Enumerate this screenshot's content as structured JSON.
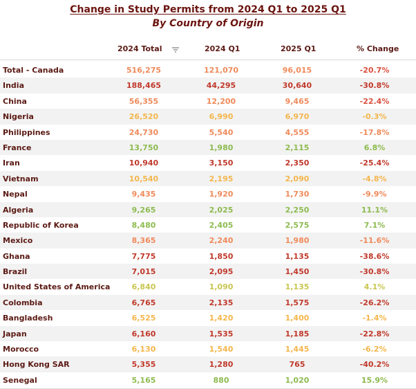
{
  "title": "Change in Study Permits from 2024 Q1 to 2025 Q1",
  "subtitle": "By Country of Origin",
  "columns": [
    "",
    "2024 Total",
    "2024 Q1",
    "2025 Q1",
    "% Change"
  ],
  "colors": {
    "dark_red": "#c0392b",
    "red": "#d9503f",
    "orange": "#ef8a5a",
    "light_orange": "#f4b64c",
    "yellow_green": "#c9c64f",
    "green": "#8dbb4f"
  },
  "rows": [
    {
      "country": "Total - Canada",
      "total": "516,275",
      "q1_2024": "121,070",
      "q1_2025": "96,015",
      "change": "-20.7%",
      "c_total": "#ef8a5a",
      "c_q24": "#ef8a5a",
      "c_q25": "#ef8a5a",
      "c_chg": "#d9503f"
    },
    {
      "country": "India",
      "total": "188,465",
      "q1_2024": "44,295",
      "q1_2025": "30,640",
      "change": "-30.8%",
      "c_total": "#c0392b",
      "c_q24": "#c0392b",
      "c_q25": "#c0392b",
      "c_chg": "#c0392b"
    },
    {
      "country": "China",
      "total": "56,355",
      "q1_2024": "12,200",
      "q1_2025": "9,465",
      "change": "-22.4%",
      "c_total": "#ef8a5a",
      "c_q24": "#ef8a5a",
      "c_q25": "#ef8a5a",
      "c_chg": "#d9503f"
    },
    {
      "country": "Nigeria",
      "total": "26,520",
      "q1_2024": "6,990",
      "q1_2025": "6,970",
      "change": "-0.3%",
      "c_total": "#f4b64c",
      "c_q24": "#f4b64c",
      "c_q25": "#f4b64c",
      "c_chg": "#f4b64c"
    },
    {
      "country": "Philippines",
      "total": "24,730",
      "q1_2024": "5,540",
      "q1_2025": "4,555",
      "change": "-17.8%",
      "c_total": "#ef8a5a",
      "c_q24": "#ef8a5a",
      "c_q25": "#ef8a5a",
      "c_chg": "#ef8a5a"
    },
    {
      "country": "France",
      "total": "13,750",
      "q1_2024": "1,980",
      "q1_2025": "2,115",
      "change": "6.8%",
      "c_total": "#8dbb4f",
      "c_q24": "#8dbb4f",
      "c_q25": "#8dbb4f",
      "c_chg": "#8dbb4f"
    },
    {
      "country": "Iran",
      "total": "10,940",
      "q1_2024": "3,150",
      "q1_2025": "2,350",
      "change": "-25.4%",
      "c_total": "#c0392b",
      "c_q24": "#c0392b",
      "c_q25": "#c0392b",
      "c_chg": "#c0392b"
    },
    {
      "country": "Vietnam",
      "total": "10,540",
      "q1_2024": "2,195",
      "q1_2025": "2,090",
      "change": "-4.8%",
      "c_total": "#f4b64c",
      "c_q24": "#f4b64c",
      "c_q25": "#f4b64c",
      "c_chg": "#f4b64c"
    },
    {
      "country": "Nepal",
      "total": "9,435",
      "q1_2024": "1,920",
      "q1_2025": "1,730",
      "change": "-9.9%",
      "c_total": "#ef8a5a",
      "c_q24": "#ef8a5a",
      "c_q25": "#ef8a5a",
      "c_chg": "#ef8a5a"
    },
    {
      "country": "Algeria",
      "total": "9,265",
      "q1_2024": "2,025",
      "q1_2025": "2,250",
      "change": "11.1%",
      "c_total": "#8dbb4f",
      "c_q24": "#8dbb4f",
      "c_q25": "#8dbb4f",
      "c_chg": "#8dbb4f"
    },
    {
      "country": "Republic of Korea",
      "total": "8,480",
      "q1_2024": "2,405",
      "q1_2025": "2,575",
      "change": "7.1%",
      "c_total": "#8dbb4f",
      "c_q24": "#8dbb4f",
      "c_q25": "#8dbb4f",
      "c_chg": "#8dbb4f"
    },
    {
      "country": "Mexico",
      "total": "8,365",
      "q1_2024": "2,240",
      "q1_2025": "1,980",
      "change": "-11.6%",
      "c_total": "#ef8a5a",
      "c_q24": "#ef8a5a",
      "c_q25": "#ef8a5a",
      "c_chg": "#ef8a5a"
    },
    {
      "country": "Ghana",
      "total": "7,775",
      "q1_2024": "1,850",
      "q1_2025": "1,135",
      "change": "-38.6%",
      "c_total": "#c0392b",
      "c_q24": "#c0392b",
      "c_q25": "#c0392b",
      "c_chg": "#c0392b"
    },
    {
      "country": "Brazil",
      "total": "7,015",
      "q1_2024": "2,095",
      "q1_2025": "1,450",
      "change": "-30.8%",
      "c_total": "#c0392b",
      "c_q24": "#c0392b",
      "c_q25": "#c0392b",
      "c_chg": "#c0392b"
    },
    {
      "country": "United States of America",
      "total": "6,840",
      "q1_2024": "1,090",
      "q1_2025": "1,135",
      "change": "4.1%",
      "c_total": "#c9c64f",
      "c_q24": "#c9c64f",
      "c_q25": "#c9c64f",
      "c_chg": "#c9c64f"
    },
    {
      "country": "Colombia",
      "total": "6,765",
      "q1_2024": "2,135",
      "q1_2025": "1,575",
      "change": "-26.2%",
      "c_total": "#c0392b",
      "c_q24": "#c0392b",
      "c_q25": "#c0392b",
      "c_chg": "#c0392b"
    },
    {
      "country": "Bangladesh",
      "total": "6,525",
      "q1_2024": "1,420",
      "q1_2025": "1,400",
      "change": "-1.4%",
      "c_total": "#f4b64c",
      "c_q24": "#f4b64c",
      "c_q25": "#f4b64c",
      "c_chg": "#f4b64c"
    },
    {
      "country": "Japan",
      "total": "6,160",
      "q1_2024": "1,535",
      "q1_2025": "1,185",
      "change": "-22.8%",
      "c_total": "#c0392b",
      "c_q24": "#c0392b",
      "c_q25": "#c0392b",
      "c_chg": "#c0392b"
    },
    {
      "country": "Morocco",
      "total": "6,130",
      "q1_2024": "1,540",
      "q1_2025": "1,445",
      "change": "-6.2%",
      "c_total": "#f4b64c",
      "c_q24": "#f4b64c",
      "c_q25": "#f4b64c",
      "c_chg": "#f4b64c"
    },
    {
      "country": "Hong Kong SAR",
      "total": "5,355",
      "q1_2024": "1,280",
      "q1_2025": "765",
      "change": "-40.2%",
      "c_total": "#c0392b",
      "c_q24": "#c0392b",
      "c_q25": "#c0392b",
      "c_chg": "#c0392b"
    },
    {
      "country": "Senegal",
      "total": "5,165",
      "q1_2024": "880",
      "q1_2025": "1,020",
      "change": "15.9%",
      "c_total": "#8dbb4f",
      "c_q24": "#8dbb4f",
      "c_q25": "#8dbb4f",
      "c_chg": "#8dbb4f"
    }
  ]
}
